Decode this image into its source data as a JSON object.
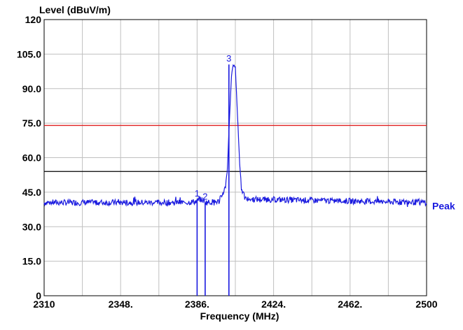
{
  "chart_data": {
    "type": "line",
    "ylabel": "Level (dBuV/m)",
    "xlabel": "Frequency (MHz)",
    "xlim": [
      2310,
      2500
    ],
    "ylim": [
      0,
      120
    ],
    "x_ticks": [
      {
        "value": 2310,
        "label": "2310"
      },
      {
        "value": 2348,
        "label": "2348."
      },
      {
        "value": 2386,
        "label": "2386."
      },
      {
        "value": 2424,
        "label": "2424."
      },
      {
        "value": 2462,
        "label": "2462."
      },
      {
        "value": 2500,
        "label": "2500"
      }
    ],
    "y_ticks": [
      {
        "value": 0,
        "label": "0"
      },
      {
        "value": 15,
        "label": "15.0"
      },
      {
        "value": 30,
        "label": "30.0"
      },
      {
        "value": 45,
        "label": "45.0"
      },
      {
        "value": 60,
        "label": "60.0"
      },
      {
        "value": 75,
        "label": "75.0"
      },
      {
        "value": 90,
        "label": "90.0"
      },
      {
        "value": 105,
        "label": "105.0"
      },
      {
        "value": 120,
        "label": "120"
      }
    ],
    "grid": true,
    "limit_lines": [
      {
        "y": 74,
        "color": "#e02020"
      },
      {
        "y": 54,
        "color": "#000000"
      }
    ],
    "series": [
      {
        "name": "Peak",
        "color": "#1a1adf",
        "noise_floor": 40.5,
        "x": [
          2310,
          2380,
          2386,
          2387,
          2389,
          2390,
          2397,
          2398,
          2400,
          2401,
          2402,
          2403,
          2404,
          2405,
          2406,
          2407,
          2408,
          2409,
          2410,
          2500
        ],
        "y": [
          40.5,
          40.5,
          41,
          42,
          41.5,
          40.5,
          41,
          43,
          47,
          55,
          75,
          95,
          100.5,
          99,
          80,
          60,
          47,
          44,
          42,
          40.5
        ]
      }
    ],
    "markers": [
      {
        "label": "1",
        "x": 2386.0,
        "y": 42.0,
        "line_to_bottom": true
      },
      {
        "label": "2",
        "x": 2390.0,
        "y": 40.6,
        "line_to_bottom": true
      },
      {
        "label": "3",
        "x": 2401.8,
        "y": 100.5,
        "line_to_bottom": true
      }
    ],
    "legend": {
      "position": "right-of-trace"
    }
  }
}
